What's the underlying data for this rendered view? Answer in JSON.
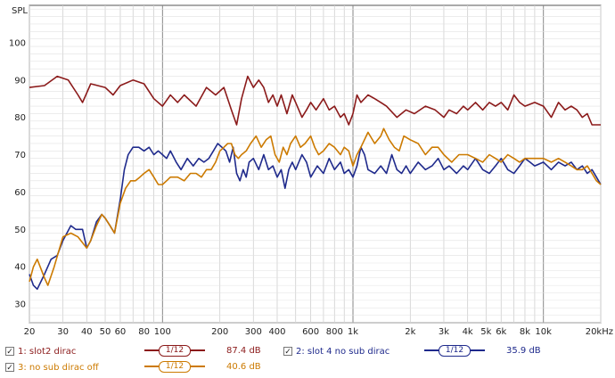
{
  "chart_data": {
    "type": "line",
    "ylabel": "SPL",
    "xscale": "log",
    "xlim": [
      20,
      20000
    ],
    "ylim": [
      25,
      110
    ],
    "grid": true,
    "x_tick_labels": [
      {
        "v": 20,
        "t": "20"
      },
      {
        "v": 30,
        "t": "30"
      },
      {
        "v": 40,
        "t": "40"
      },
      {
        "v": 50,
        "t": "50"
      },
      {
        "v": 60,
        "t": "60"
      },
      {
        "v": 80,
        "t": "80"
      },
      {
        "v": 100,
        "t": "100"
      },
      {
        "v": 200,
        "t": "200"
      },
      {
        "v": 300,
        "t": "300"
      },
      {
        "v": 400,
        "t": "400"
      },
      {
        "v": 600,
        "t": "600"
      },
      {
        "v": 800,
        "t": "800"
      },
      {
        "v": 1000,
        "t": "1k"
      },
      {
        "v": 2000,
        "t": "2k"
      },
      {
        "v": 3000,
        "t": "3k"
      },
      {
        "v": 4000,
        "t": "4k"
      },
      {
        "v": 5000,
        "t": "5k"
      },
      {
        "v": 6000,
        "t": "6k"
      },
      {
        "v": 8000,
        "t": "8k"
      },
      {
        "v": 10000,
        "t": "10k"
      },
      {
        "v": 20000,
        "t": "20kHz"
      }
    ],
    "y_ticks": [
      30,
      40,
      50,
      60,
      70,
      80,
      90,
      100
    ],
    "series": [
      {
        "name": "1: slot2 dirac",
        "color": "#8b1a1a",
        "points": [
          [
            20,
            88
          ],
          [
            24,
            88.5
          ],
          [
            28,
            91
          ],
          [
            32,
            90
          ],
          [
            36,
            86
          ],
          [
            38,
            84
          ],
          [
            42,
            89
          ],
          [
            50,
            88
          ],
          [
            55,
            86
          ],
          [
            60,
            88.5
          ],
          [
            70,
            90
          ],
          [
            80,
            89
          ],
          [
            90,
            85
          ],
          [
            100,
            83
          ],
          [
            110,
            86
          ],
          [
            120,
            84
          ],
          [
            130,
            86
          ],
          [
            150,
            83
          ],
          [
            170,
            88
          ],
          [
            190,
            86
          ],
          [
            210,
            88
          ],
          [
            230,
            82
          ],
          [
            245,
            78
          ],
          [
            260,
            85
          ],
          [
            280,
            91
          ],
          [
            300,
            88
          ],
          [
            320,
            90
          ],
          [
            340,
            88
          ],
          [
            360,
            84
          ],
          [
            380,
            86
          ],
          [
            400,
            83
          ],
          [
            420,
            86
          ],
          [
            450,
            81
          ],
          [
            480,
            86
          ],
          [
            500,
            84
          ],
          [
            540,
            80
          ],
          [
            570,
            82
          ],
          [
            600,
            84
          ],
          [
            640,
            82
          ],
          [
            700,
            85
          ],
          [
            750,
            82
          ],
          [
            800,
            83
          ],
          [
            860,
            80
          ],
          [
            900,
            81
          ],
          [
            950,
            78
          ],
          [
            1000,
            81
          ],
          [
            1050,
            86
          ],
          [
            1100,
            84
          ],
          [
            1200,
            86
          ],
          [
            1300,
            85
          ],
          [
            1400,
            84
          ],
          [
            1500,
            83
          ],
          [
            1700,
            80
          ],
          [
            1900,
            82
          ],
          [
            2100,
            81
          ],
          [
            2400,
            83
          ],
          [
            2700,
            82
          ],
          [
            3000,
            80
          ],
          [
            3200,
            82
          ],
          [
            3500,
            81
          ],
          [
            3800,
            83
          ],
          [
            4000,
            82
          ],
          [
            4400,
            84
          ],
          [
            4800,
            82
          ],
          [
            5200,
            84
          ],
          [
            5600,
            83
          ],
          [
            6000,
            84
          ],
          [
            6500,
            82
          ],
          [
            7000,
            86
          ],
          [
            7500,
            84
          ],
          [
            8000,
            83
          ],
          [
            9000,
            84
          ],
          [
            10000,
            83
          ],
          [
            11000,
            80
          ],
          [
            12000,
            84
          ],
          [
            13000,
            82
          ],
          [
            14000,
            83
          ],
          [
            15000,
            82
          ],
          [
            16000,
            80
          ],
          [
            17000,
            81
          ],
          [
            18000,
            78
          ],
          [
            20000,
            78
          ]
        ]
      },
      {
        "name": "2: slot 4 no sub dirac",
        "color": "#1f2a8c",
        "points": [
          [
            20,
            38
          ],
          [
            21,
            35
          ],
          [
            22,
            34
          ],
          [
            24,
            38
          ],
          [
            26,
            42
          ],
          [
            28,
            43
          ],
          [
            30,
            47
          ],
          [
            33,
            51
          ],
          [
            35,
            50
          ],
          [
            38,
            50
          ],
          [
            40,
            45
          ],
          [
            42,
            47
          ],
          [
            45,
            52
          ],
          [
            48,
            54
          ],
          [
            50,
            53
          ],
          [
            53,
            51
          ],
          [
            56,
            49
          ],
          [
            60,
            58
          ],
          [
            63,
            66
          ],
          [
            66,
            70
          ],
          [
            70,
            72
          ],
          [
            75,
            72
          ],
          [
            80,
            71
          ],
          [
            85,
            72
          ],
          [
            90,
            70
          ],
          [
            95,
            71
          ],
          [
            100,
            70
          ],
          [
            105,
            69
          ],
          [
            110,
            71
          ],
          [
            118,
            68
          ],
          [
            125,
            66
          ],
          [
            135,
            69
          ],
          [
            145,
            67
          ],
          [
            155,
            69
          ],
          [
            165,
            68
          ],
          [
            175,
            69
          ],
          [
            185,
            71
          ],
          [
            195,
            73
          ],
          [
            205,
            72
          ],
          [
            215,
            71
          ],
          [
            225,
            68
          ],
          [
            235,
            72
          ],
          [
            245,
            65
          ],
          [
            255,
            63
          ],
          [
            265,
            66
          ],
          [
            275,
            64
          ],
          [
            285,
            68
          ],
          [
            300,
            69
          ],
          [
            320,
            66
          ],
          [
            340,
            70
          ],
          [
            360,
            66
          ],
          [
            380,
            67
          ],
          [
            400,
            64
          ],
          [
            420,
            66
          ],
          [
            440,
            61
          ],
          [
            460,
            66
          ],
          [
            480,
            68
          ],
          [
            500,
            66
          ],
          [
            540,
            70
          ],
          [
            570,
            68
          ],
          [
            600,
            64
          ],
          [
            650,
            67
          ],
          [
            700,
            65
          ],
          [
            750,
            69
          ],
          [
            800,
            66
          ],
          [
            860,
            68
          ],
          [
            900,
            65
          ],
          [
            950,
            66
          ],
          [
            1000,
            64
          ],
          [
            1050,
            67
          ],
          [
            1100,
            72
          ],
          [
            1150,
            70
          ],
          [
            1200,
            66
          ],
          [
            1300,
            65
          ],
          [
            1400,
            67
          ],
          [
            1500,
            65
          ],
          [
            1600,
            70
          ],
          [
            1700,
            66
          ],
          [
            1800,
            65
          ],
          [
            1900,
            67
          ],
          [
            2000,
            65
          ],
          [
            2200,
            68
          ],
          [
            2400,
            66
          ],
          [
            2600,
            67
          ],
          [
            2800,
            69
          ],
          [
            3000,
            66
          ],
          [
            3200,
            67
          ],
          [
            3500,
            65
          ],
          [
            3800,
            67
          ],
          [
            4000,
            66
          ],
          [
            4400,
            69
          ],
          [
            4800,
            66
          ],
          [
            5200,
            65
          ],
          [
            5600,
            67
          ],
          [
            6000,
            69
          ],
          [
            6500,
            66
          ],
          [
            7000,
            65
          ],
          [
            7500,
            67
          ],
          [
            8000,
            69
          ],
          [
            8500,
            68
          ],
          [
            9000,
            67
          ],
          [
            10000,
            68
          ],
          [
            11000,
            66
          ],
          [
            12000,
            68
          ],
          [
            13000,
            67
          ],
          [
            14000,
            68
          ],
          [
            15000,
            66
          ],
          [
            16000,
            67
          ],
          [
            17000,
            65
          ],
          [
            18000,
            66
          ],
          [
            19000,
            64
          ],
          [
            20000,
            62
          ]
        ]
      },
      {
        "name": "3: no sub dirac off",
        "color": "#cc7a00",
        "points": [
          [
            20,
            36
          ],
          [
            21,
            40
          ],
          [
            22,
            42
          ],
          [
            24,
            37
          ],
          [
            25,
            35
          ],
          [
            27,
            40
          ],
          [
            30,
            48
          ],
          [
            33,
            49
          ],
          [
            36,
            48
          ],
          [
            40,
            45
          ],
          [
            42,
            47
          ],
          [
            45,
            51
          ],
          [
            48,
            54
          ],
          [
            50,
            53
          ],
          [
            53,
            51
          ],
          [
            56,
            49
          ],
          [
            60,
            57
          ],
          [
            64,
            61
          ],
          [
            68,
            63
          ],
          [
            72,
            63
          ],
          [
            76,
            64
          ],
          [
            80,
            65
          ],
          [
            85,
            66
          ],
          [
            90,
            64
          ],
          [
            95,
            62
          ],
          [
            100,
            62
          ],
          [
            105,
            63
          ],
          [
            110,
            64
          ],
          [
            120,
            64
          ],
          [
            130,
            63
          ],
          [
            140,
            65
          ],
          [
            150,
            65
          ],
          [
            160,
            64
          ],
          [
            170,
            66
          ],
          [
            180,
            66
          ],
          [
            190,
            68
          ],
          [
            200,
            71
          ],
          [
            210,
            72
          ],
          [
            220,
            73
          ],
          [
            230,
            73
          ],
          [
            240,
            70
          ],
          [
            250,
            69
          ],
          [
            260,
            70
          ],
          [
            275,
            71
          ],
          [
            290,
            73
          ],
          [
            310,
            75
          ],
          [
            330,
            72
          ],
          [
            350,
            74
          ],
          [
            370,
            75
          ],
          [
            390,
            70
          ],
          [
            410,
            68
          ],
          [
            430,
            72
          ],
          [
            450,
            70
          ],
          [
            470,
            73
          ],
          [
            500,
            75
          ],
          [
            530,
            72
          ],
          [
            560,
            73
          ],
          [
            600,
            75
          ],
          [
            630,
            72
          ],
          [
            660,
            70
          ],
          [
            700,
            71
          ],
          [
            750,
            73
          ],
          [
            800,
            72
          ],
          [
            860,
            70
          ],
          [
            900,
            72
          ],
          [
            950,
            71
          ],
          [
            1000,
            67
          ],
          [
            1050,
            70
          ],
          [
            1100,
            72
          ],
          [
            1200,
            76
          ],
          [
            1300,
            73
          ],
          [
            1400,
            75
          ],
          [
            1450,
            77
          ],
          [
            1550,
            74
          ],
          [
            1650,
            72
          ],
          [
            1750,
            71
          ],
          [
            1850,
            75
          ],
          [
            2000,
            74
          ],
          [
            2200,
            73
          ],
          [
            2400,
            70
          ],
          [
            2600,
            72
          ],
          [
            2800,
            72
          ],
          [
            3000,
            70
          ],
          [
            3300,
            68
          ],
          [
            3600,
            70
          ],
          [
            4000,
            70
          ],
          [
            4400,
            69
          ],
          [
            4800,
            68
          ],
          [
            5200,
            70
          ],
          [
            5600,
            69
          ],
          [
            6000,
            68
          ],
          [
            6500,
            70
          ],
          [
            7000,
            69
          ],
          [
            7500,
            68
          ],
          [
            8000,
            69
          ],
          [
            9000,
            69
          ],
          [
            10000,
            69
          ],
          [
            11000,
            68
          ],
          [
            12000,
            69
          ],
          [
            13000,
            68
          ],
          [
            14000,
            67
          ],
          [
            15000,
            66
          ],
          [
            16000,
            66
          ],
          [
            17000,
            67
          ],
          [
            18000,
            65
          ],
          [
            19000,
            63
          ],
          [
            20000,
            62
          ]
        ]
      }
    ]
  },
  "legend": [
    {
      "label": "1: slot2 dirac",
      "smoothing": "1/12",
      "value": "87.4 dB",
      "color": "#8b1a1a",
      "checked": "✓"
    },
    {
      "label": "2: slot 4 no sub dirac",
      "smoothing": "1/12",
      "value": "35.9 dB",
      "color": "#1f2a8c",
      "checked": "✓"
    },
    {
      "label": "3: no sub dirac off",
      "smoothing": "1/12",
      "value": "40.6 dB",
      "color": "#cc7a00",
      "checked": "✓"
    }
  ]
}
